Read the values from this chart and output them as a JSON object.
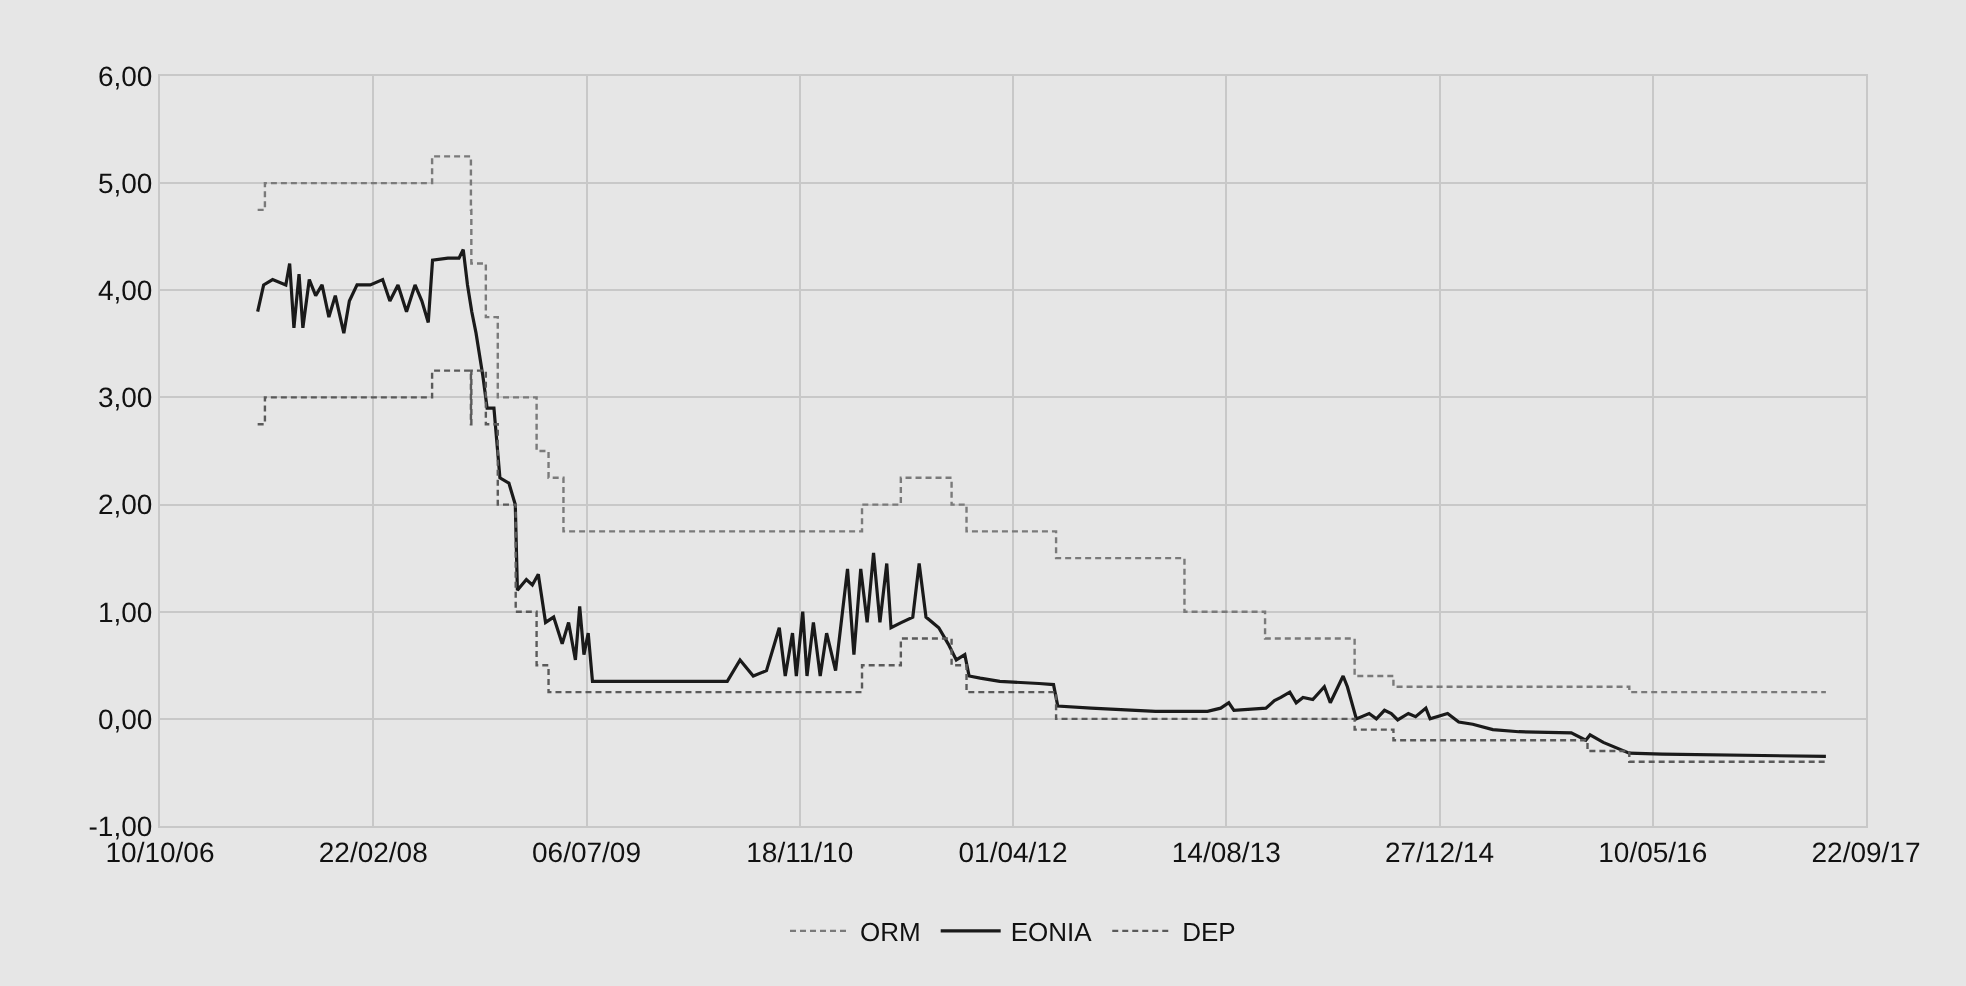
{
  "chart_data": {
    "type": "line",
    "grid": true,
    "legend": "bottom",
    "marker": "none",
    "xlim": [
      "2006-10-10",
      "2017-09-22"
    ],
    "xticks": [
      {
        "value": "2006-10-10",
        "label": "10/10/06"
      },
      {
        "value": "2008-02-22",
        "label": "22/02/08"
      },
      {
        "value": "2009-07-06",
        "label": "06/07/09"
      },
      {
        "value": "2010-11-18",
        "label": "18/11/10"
      },
      {
        "value": "2012-04-01",
        "label": "01/04/12"
      },
      {
        "value": "2013-08-14",
        "label": "14/08/13"
      },
      {
        "value": "2014-12-27",
        "label": "27/12/14"
      },
      {
        "value": "2016-05-10",
        "label": "10/05/16"
      },
      {
        "value": "2017-09-22",
        "label": "22/09/17"
      }
    ],
    "ylim": [
      -1,
      6
    ],
    "yticks": [
      {
        "value": -1,
        "label": "-1,00"
      },
      {
        "value": 0,
        "label": "0,00"
      },
      {
        "value": 1,
        "label": "1,00"
      },
      {
        "value": 2,
        "label": "2,00"
      },
      {
        "value": 3,
        "label": "3,00"
      },
      {
        "value": 4,
        "label": "4,00"
      },
      {
        "value": 5,
        "label": "5,00"
      },
      {
        "value": 6,
        "label": "6,00"
      }
    ],
    "series": [
      {
        "name": "ORM",
        "type": "step",
        "line_style": "dashed",
        "color": "#7a7a7a",
        "x": [
          "2007-05-27",
          "2007-06-13",
          "2008-07-09",
          "2008-10-08",
          "2008-10-09",
          "2008-11-12",
          "2008-12-10",
          "2009-03-11",
          "2009-04-08",
          "2009-05-13",
          "2011-04-13",
          "2011-07-13",
          "2011-11-09",
          "2011-12-14",
          "2012-07-11",
          "2013-05-08",
          "2013-11-13",
          "2014-06-11",
          "2014-09-10",
          "2016-03-16",
          "2017-06-20"
        ],
        "values": [
          4.75,
          5.0,
          5.25,
          4.75,
          4.25,
          3.75,
          3.0,
          2.5,
          2.25,
          1.75,
          2.0,
          2.25,
          2.0,
          1.75,
          1.5,
          1.0,
          0.75,
          0.4,
          0.3,
          0.25,
          0.25
        ]
      },
      {
        "name": "EONIA",
        "line_style": "solid",
        "color": "#1a1a1a",
        "x": [
          "2007-05-27",
          "2007-06-10",
          "2007-07-01",
          "2007-08-01",
          "2007-08-10",
          "2007-08-20",
          "2007-09-01",
          "2007-09-10",
          "2007-09-25",
          "2007-10-10",
          "2007-10-25",
          "2007-11-10",
          "2007-11-25",
          "2007-12-15",
          "2007-12-28",
          "2008-01-15",
          "2008-02-15",
          "2008-03-15",
          "2008-04-01",
          "2008-04-20",
          "2008-05-10",
          "2008-05-30",
          "2008-06-15",
          "2008-06-30",
          "2008-07-10",
          "2008-08-15",
          "2008-09-10",
          "2008-09-20",
          "2008-09-30",
          "2008-10-10",
          "2008-10-20",
          "2008-11-05",
          "2008-11-15",
          "2008-12-01",
          "2008-12-15",
          "2009-01-05",
          "2009-01-20",
          "2009-01-25",
          "2009-02-15",
          "2009-03-01",
          "2009-03-15",
          "2009-04-01",
          "2009-04-20",
          "2009-05-10",
          "2009-05-25",
          "2009-06-10",
          "2009-06-20",
          "2009-06-30",
          "2009-07-10",
          "2009-07-20",
          "2010-01-01",
          "2010-06-01",
          "2010-07-01",
          "2010-08-01",
          "2010-09-01",
          "2010-10-01",
          "2010-10-15",
          "2010-11-01",
          "2010-11-10",
          "2010-11-25",
          "2010-12-05",
          "2010-12-20",
          "2011-01-05",
          "2011-01-20",
          "2011-02-10",
          "2011-03-10",
          "2011-03-25",
          "2011-04-10",
          "2011-04-25",
          "2011-05-10",
          "2011-05-25",
          "2011-06-10",
          "2011-06-20",
          "2011-07-15",
          "2011-08-10",
          "2011-08-25",
          "2011-09-10",
          "2011-10-10",
          "2011-11-01",
          "2011-11-20",
          "2011-12-10",
          "2011-12-20",
          "2012-01-15",
          "2012-03-01",
          "2012-06-01",
          "2012-07-05",
          "2012-07-15",
          "2012-10-01",
          "2013-03-01",
          "2013-07-01",
          "2013-08-01",
          "2013-08-20",
          "2013-09-01",
          "2013-11-15",
          "2013-12-05",
          "2013-12-20",
          "2014-01-10",
          "2014-01-25",
          "2014-02-10",
          "2014-03-05",
          "2014-04-01",
          "2014-04-15",
          "2014-05-15",
          "2014-05-25",
          "2014-06-15",
          "2014-07-15",
          "2014-08-01",
          "2014-08-20",
          "2014-09-05",
          "2014-09-20",
          "2014-10-15",
          "2014-11-01",
          "2014-11-25",
          "2014-12-05",
          "2015-01-15",
          "2015-02-10",
          "2015-03-15",
          "2015-05-01",
          "2015-07-01",
          "2015-11-01",
          "2015-12-05",
          "2015-12-15",
          "2016-01-15",
          "2016-03-16",
          "2016-06-01",
          "2017-06-20"
        ],
        "values": [
          3.8,
          4.05,
          4.1,
          4.05,
          4.25,
          3.65,
          4.15,
          3.65,
          4.1,
          3.95,
          4.05,
          3.75,
          3.95,
          3.6,
          3.9,
          4.05,
          4.05,
          4.1,
          3.9,
          4.05,
          3.8,
          4.05,
          3.9,
          3.7,
          4.28,
          4.3,
          4.3,
          4.38,
          4.05,
          3.8,
          3.6,
          3.2,
          2.9,
          2.9,
          2.25,
          2.2,
          2.0,
          1.2,
          1.3,
          1.25,
          1.35,
          0.9,
          0.95,
          0.7,
          0.9,
          0.55,
          1.05,
          0.6,
          0.8,
          0.35,
          0.35,
          0.35,
          0.55,
          0.4,
          0.45,
          0.85,
          0.4,
          0.8,
          0.4,
          1.0,
          0.4,
          0.9,
          0.4,
          0.8,
          0.45,
          1.4,
          0.6,
          1.4,
          0.9,
          1.55,
          0.9,
          1.45,
          0.85,
          0.9,
          0.95,
          1.45,
          0.95,
          0.85,
          0.7,
          0.55,
          0.6,
          0.4,
          0.38,
          0.35,
          0.33,
          0.32,
          0.12,
          0.1,
          0.07,
          0.07,
          0.1,
          0.15,
          0.08,
          0.1,
          0.17,
          0.2,
          0.25,
          0.15,
          0.2,
          0.18,
          0.3,
          0.15,
          0.4,
          0.3,
          0.0,
          0.05,
          0.0,
          0.08,
          0.05,
          -0.01,
          0.05,
          0.02,
          0.1,
          0.0,
          0.05,
          -0.03,
          -0.05,
          -0.1,
          -0.12,
          -0.13,
          -0.2,
          -0.15,
          -0.22,
          -0.32,
          -0.33,
          -0.35
        ]
      },
      {
        "name": "DEP",
        "type": "step",
        "line_style": "dashed",
        "color": "#5a5a5a",
        "x": [
          "2007-05-27",
          "2007-06-13",
          "2008-07-09",
          "2008-10-08",
          "2008-10-09",
          "2008-11-12",
          "2008-12-10",
          "2009-01-21",
          "2009-03-11",
          "2009-04-08",
          "2011-04-13",
          "2011-07-13",
          "2011-11-09",
          "2011-12-14",
          "2012-07-11",
          "2014-06-11",
          "2014-09-10",
          "2015-12-09",
          "2016-03-16",
          "2017-06-20"
        ],
        "values": [
          2.75,
          3.0,
          3.25,
          2.75,
          3.25,
          2.75,
          2.0,
          1.0,
          0.5,
          0.25,
          0.5,
          0.75,
          0.5,
          0.25,
          0.0,
          -0.1,
          -0.2,
          -0.3,
          -0.4,
          -0.4
        ]
      }
    ]
  }
}
